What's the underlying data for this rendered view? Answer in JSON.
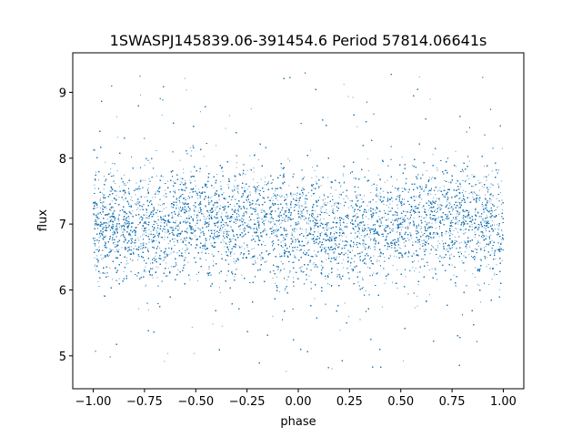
{
  "chart_data": {
    "type": "scatter",
    "title": "1SWASPJ145839.06-391454.6 Period 57814.06641s",
    "xlabel": "phase",
    "ylabel": "flux",
    "xlim": [
      -1.1,
      1.1
    ],
    "ylim": [
      4.5,
      9.6
    ],
    "x_ticks": [
      -1.0,
      -0.75,
      -0.5,
      -0.25,
      0.0,
      0.25,
      0.5,
      0.75,
      1.0
    ],
    "x_tick_labels": [
      "−1.00",
      "−0.75",
      "−0.50",
      "−0.25",
      "0.00",
      "0.25",
      "0.50",
      "0.75",
      "1.00"
    ],
    "y_ticks": [
      5,
      6,
      7,
      8,
      9
    ],
    "y_tick_labels": [
      "5",
      "6",
      "7",
      "8",
      "9"
    ],
    "grid": false,
    "marker_color": "#1f77b4",
    "series": [
      {
        "x": [
          -1.0,
          -0.95,
          -0.9,
          -0.85,
          -0.8,
          -0.75,
          -0.7,
          -0.65,
          -0.6,
          -0.55,
          -0.5,
          -0.45,
          -0.4,
          -0.35,
          -0.3,
          -0.25,
          -0.2,
          -0.15,
          -0.1,
          -0.05,
          0.0,
          0.05,
          0.1,
          0.15,
          0.2,
          0.25,
          0.3,
          0.35,
          0.4,
          0.45,
          0.5,
          0.55,
          0.6,
          0.65,
          0.7,
          0.75,
          0.8,
          0.85,
          0.9,
          0.95,
          1.0
        ],
        "y_center": [
          6.95,
          6.97,
          7.0,
          7.02,
          7.0,
          6.95,
          6.9,
          6.98,
          7.05,
          7.08,
          7.1,
          7.08,
          7.05,
          7.02,
          7.0,
          7.05,
          7.08,
          7.05,
          7.0,
          6.95,
          6.92,
          6.9,
          6.88,
          6.85,
          6.88,
          6.92,
          6.97,
          7.0,
          7.02,
          7.0,
          6.95,
          6.9,
          6.97,
          7.05,
          7.08,
          7.1,
          7.08,
          7.05,
          7.02,
          7.0,
          6.97
        ],
        "y_spread": 0.42,
        "y_min": 4.75,
        "y_max": 9.35,
        "point_count": 40000
      }
    ]
  }
}
